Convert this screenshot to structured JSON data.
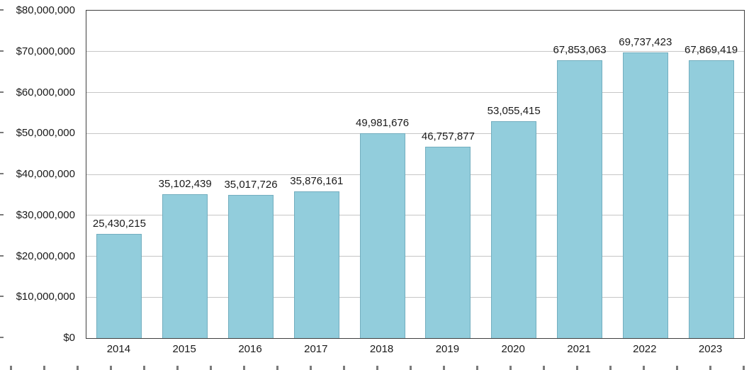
{
  "chart_data": {
    "type": "bar",
    "title": "",
    "xlabel": "",
    "ylabel": "",
    "categories": [
      "2014",
      "2015",
      "2016",
      "2017",
      "2018",
      "2019",
      "2020",
      "2021",
      "2022",
      "2023"
    ],
    "values": [
      25430215,
      35102439,
      35017726,
      35876161,
      49981676,
      46757877,
      53055415,
      67853063,
      69737423,
      67869419
    ],
    "data_labels": [
      "25,430,215",
      "35,102,439",
      "35,017,726",
      "35,876,161",
      "49,981,676",
      "46,757,877",
      "53,055,415",
      "67,853,063",
      "69,737,423",
      "67,869,419"
    ],
    "ylim": [
      0,
      80000000
    ],
    "ytick_step": 10000000,
    "ytick_labels": [
      "$0",
      "$10,000,000",
      "$20,000,000",
      "$30,000,000",
      "$40,000,000",
      "$50,000,000",
      "$60,000,000",
      "$70,000,000",
      "$80,000,000"
    ],
    "grid": true,
    "legend": false,
    "legend_position": "none",
    "bar_color": "#92cddc",
    "bar_border_color": "#73aebf",
    "gridline_color": "#c6c6c6",
    "axis_border_color": "#3f3f3f"
  }
}
